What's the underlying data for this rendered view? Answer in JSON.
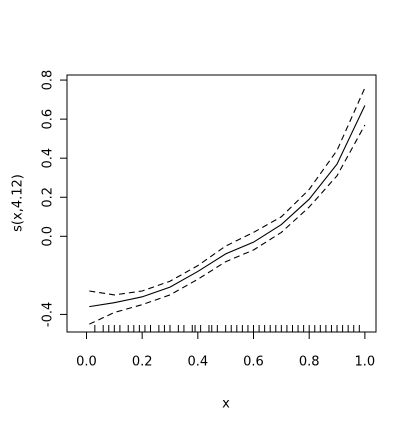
{
  "chart_data": {
    "type": "line",
    "xlabel": "x",
    "ylabel": "s(x,4.12)",
    "x": [
      0.01,
      0.1,
      0.2,
      0.3,
      0.4,
      0.5,
      0.6,
      0.7,
      0.8,
      0.9,
      1.0
    ],
    "series": [
      {
        "color": "#000000",
        "dash": false,
        "values": [
          -0.36,
          -0.34,
          -0.31,
          -0.26,
          -0.18,
          -0.09,
          -0.03,
          0.06,
          0.19,
          0.37,
          0.67
        ]
      },
      {
        "color": "#000000",
        "dash": true,
        "values": [
          -0.28,
          -0.3,
          -0.28,
          -0.23,
          -0.15,
          -0.05,
          0.02,
          0.1,
          0.24,
          0.44,
          0.76
        ]
      },
      {
        "color": "#000000",
        "dash": true,
        "values": [
          -0.45,
          -0.39,
          -0.35,
          -0.3,
          -0.22,
          -0.13,
          -0.07,
          0.02,
          0.15,
          0.31,
          0.57
        ]
      }
    ],
    "rug": [
      0.03,
      0.06,
      0.08,
      0.1,
      0.12,
      0.15,
      0.17,
      0.19,
      0.21,
      0.23,
      0.26,
      0.28,
      0.3,
      0.33,
      0.35,
      0.38,
      0.39,
      0.41,
      0.44,
      0.45,
      0.47,
      0.5,
      0.52,
      0.54,
      0.56,
      0.58,
      0.6,
      0.62,
      0.64,
      0.66,
      0.68,
      0.7,
      0.72,
      0.74,
      0.76,
      0.78,
      0.8,
      0.82,
      0.84,
      0.86,
      0.88,
      0.9,
      0.92,
      0.94,
      0.96,
      0.98
    ],
    "xlim": [
      -0.07,
      1.04
    ],
    "ylim": [
      -0.49,
      0.826
    ],
    "xticks": [
      {
        "value": 0,
        "label": "0.0"
      },
      0.2,
      0.4,
      0.6,
      0.8,
      {
        "value": 1,
        "label": "1.0"
      }
    ],
    "yticks": [
      -0.4,
      {
        "value": 0,
        "label": "0.0"
      },
      0.2,
      0.4,
      0.6,
      0.8
    ]
  }
}
